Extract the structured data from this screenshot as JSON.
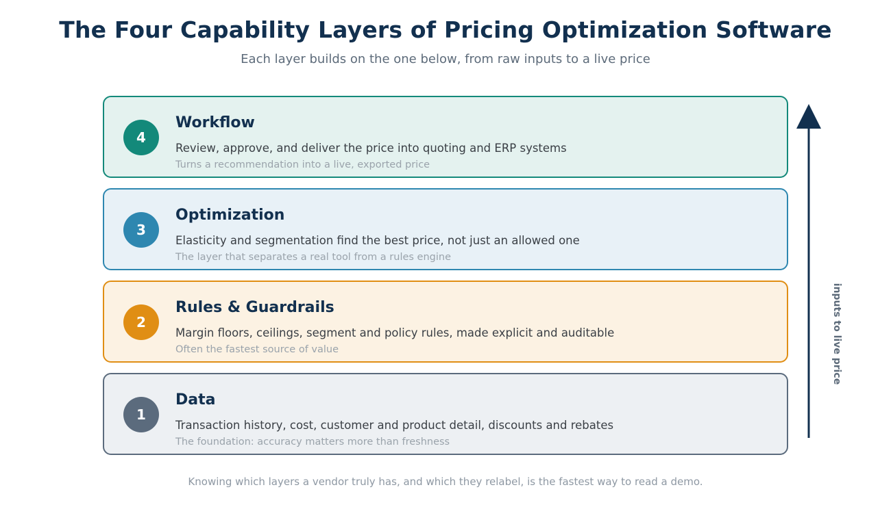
{
  "header": {
    "title": "The Four Capability Layers of Pricing Optimization Software",
    "subtitle": "Each layer builds on the one below, from raw inputs to a live price"
  },
  "layers": [
    {
      "number": "4",
      "name": "Workflow",
      "description": "Review, approve, and deliver the price into quoting and ERP systems",
      "note": "Turns a recommendation into a live, exported price",
      "border_color": "#13897a",
      "fill_color": "#e4f2ef",
      "badge_color": "#13897a"
    },
    {
      "number": "3",
      "name": "Optimization",
      "description": "Elasticity and segmentation find the best price, not just an allowed one",
      "note": "The layer that separates a real tool from a rules engine",
      "border_color": "#2e87b0",
      "fill_color": "#e8f1f7",
      "badge_color": "#2e87b0"
    },
    {
      "number": "2",
      "name": "Rules & Guardrails",
      "description": "Margin floors, ceilings, segment and policy rules, made explicit and auditable",
      "note": "Often the fastest source of value",
      "border_color": "#e08e14",
      "fill_color": "#fcf2e3",
      "badge_color": "#e08e14"
    },
    {
      "number": "1",
      "name": "Data",
      "description": "Transaction history, cost, customer and product detail, discounts and rebates",
      "note": "The foundation: accuracy matters more than freshness",
      "border_color": "#5b6b7d",
      "fill_color": "#edf0f3",
      "badge_color": "#5b6b7d"
    }
  ],
  "arrow": {
    "label": "inputs to live price",
    "color": "#12304f"
  },
  "footer": {
    "text": "Knowing which layers a vendor truly has, and which they relabel, is the fastest way to read a demo."
  }
}
